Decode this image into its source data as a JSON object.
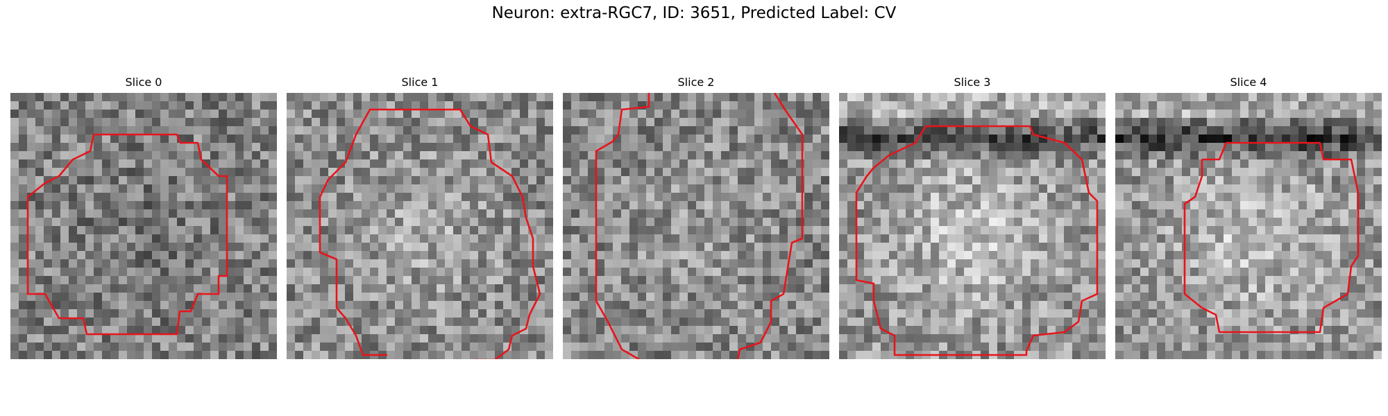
{
  "figure": {
    "title": "Neuron: extra-RGC7, ID: 3651, Predicted Label: CV"
  },
  "slices": [
    {
      "label": "Slice 0"
    },
    {
      "label": "Slice 1"
    },
    {
      "label": "Slice 2"
    },
    {
      "label": "Slice 3"
    },
    {
      "label": "Slice 4"
    }
  ],
  "colors": {
    "outline": "#e8141b",
    "background": "#ffffff"
  }
}
